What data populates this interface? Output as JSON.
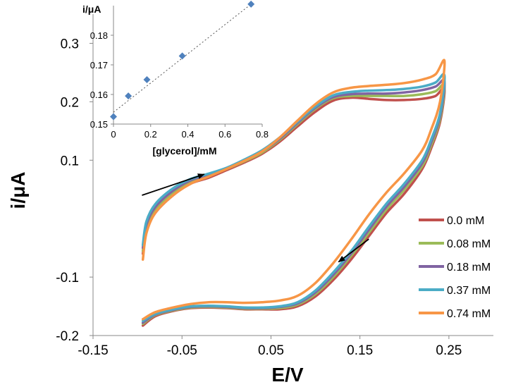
{
  "chart_data": [
    {
      "type": "line",
      "xlabel": "E/V",
      "ylabel": "i/μA",
      "xlim": [
        -0.15,
        0.3
      ],
      "ylim": [
        -0.2,
        0.35
      ],
      "x_ticks": [
        "-0.15",
        "-0.05",
        "0.05",
        "0.15",
        "0.25"
      ],
      "y_ticks": [
        "-0.2",
        "-0.1",
        "0.1",
        "0.2",
        "0.3"
      ],
      "grid": false,
      "legend_position": "bottom-right",
      "annotations": [
        {
          "type": "arrow",
          "direction": "up-right",
          "from": [
            -0.095,
            0.04
          ],
          "to": [
            -0.025,
            0.076
          ]
        },
        {
          "type": "arrow",
          "direction": "down-left",
          "from": [
            0.16,
            -0.035
          ],
          "to": [
            0.126,
            -0.074
          ]
        }
      ],
      "series": [
        {
          "name": "0.0 mM",
          "color": "#c0504d",
          "forward": [
            [
              -0.094,
              -0.06
            ],
            [
              -0.09,
              -0.02
            ],
            [
              -0.08,
              0.01
            ],
            [
              -0.06,
              0.04
            ],
            [
              -0.04,
              0.06
            ],
            [
              -0.02,
              0.07
            ],
            [
              0.0,
              0.083
            ],
            [
              0.02,
              0.096
            ],
            [
              0.04,
              0.111
            ],
            [
              0.06,
              0.132
            ],
            [
              0.08,
              0.158
            ],
            [
              0.1,
              0.183
            ],
            [
              0.12,
              0.202
            ],
            [
              0.14,
              0.207
            ],
            [
              0.16,
              0.205
            ],
            [
              0.18,
              0.203
            ],
            [
              0.2,
              0.203
            ],
            [
              0.22,
              0.205
            ],
            [
              0.235,
              0.21
            ],
            [
              0.245,
              0.222
            ]
          ],
          "reverse": [
            [
              0.245,
              0.222
            ],
            [
              0.24,
              0.165
            ],
            [
              0.23,
              0.12
            ],
            [
              0.22,
              0.085
            ],
            [
              0.2,
              0.043
            ],
            [
              0.18,
              0.01
            ],
            [
              0.16,
              -0.03
            ],
            [
              0.14,
              -0.07
            ],
            [
              0.12,
              -0.105
            ],
            [
              0.1,
              -0.133
            ],
            [
              0.08,
              -0.15
            ],
            [
              0.06,
              -0.155
            ],
            [
              0.04,
              -0.155
            ],
            [
              0.02,
              -0.155
            ],
            [
              0.0,
              -0.153
            ],
            [
              -0.02,
              -0.152
            ],
            [
              -0.04,
              -0.153
            ],
            [
              -0.06,
              -0.158
            ],
            [
              -0.08,
              -0.167
            ],
            [
              -0.094,
              -0.183
            ]
          ]
        },
        {
          "name": "0.08 mM",
          "color": "#9bbb59",
          "forward": [
            [
              -0.094,
              -0.055
            ],
            [
              -0.09,
              -0.015
            ],
            [
              -0.08,
              0.015
            ],
            [
              -0.06,
              0.044
            ],
            [
              -0.04,
              0.063
            ],
            [
              -0.02,
              0.073
            ],
            [
              0.0,
              0.085
            ],
            [
              0.02,
              0.098
            ],
            [
              0.04,
              0.113
            ],
            [
              0.06,
              0.135
            ],
            [
              0.08,
              0.162
            ],
            [
              0.1,
              0.188
            ],
            [
              0.12,
              0.206
            ],
            [
              0.14,
              0.21
            ],
            [
              0.16,
              0.21
            ],
            [
              0.18,
              0.21
            ],
            [
              0.2,
              0.21
            ],
            [
              0.22,
              0.213
            ],
            [
              0.235,
              0.218
            ],
            [
              0.245,
              0.228
            ]
          ],
          "reverse": [
            [
              0.245,
              0.228
            ],
            [
              0.24,
              0.17
            ],
            [
              0.23,
              0.125
            ],
            [
              0.22,
              0.09
            ],
            [
              0.2,
              0.05
            ],
            [
              0.18,
              0.016
            ],
            [
              0.16,
              -0.024
            ],
            [
              0.14,
              -0.064
            ],
            [
              0.12,
              -0.1
            ],
            [
              0.1,
              -0.129
            ],
            [
              0.08,
              -0.147
            ],
            [
              0.06,
              -0.153
            ],
            [
              0.04,
              -0.154
            ],
            [
              0.02,
              -0.154
            ],
            [
              0.0,
              -0.152
            ],
            [
              -0.02,
              -0.151
            ],
            [
              -0.04,
              -0.152
            ],
            [
              -0.06,
              -0.157
            ],
            [
              -0.08,
              -0.165
            ],
            [
              -0.094,
              -0.18
            ]
          ]
        },
        {
          "name": "0.18 mM",
          "color": "#8064a2",
          "forward": [
            [
              -0.094,
              -0.05
            ],
            [
              -0.09,
              -0.01
            ],
            [
              -0.08,
              0.02
            ],
            [
              -0.06,
              0.048
            ],
            [
              -0.04,
              0.066
            ],
            [
              -0.02,
              0.075
            ],
            [
              0.0,
              0.086
            ],
            [
              0.02,
              0.1
            ],
            [
              0.04,
              0.115
            ],
            [
              0.06,
              0.137
            ],
            [
              0.08,
              0.164
            ],
            [
              0.1,
              0.19
            ],
            [
              0.12,
              0.208
            ],
            [
              0.14,
              0.213
            ],
            [
              0.16,
              0.214
            ],
            [
              0.18,
              0.214
            ],
            [
              0.2,
              0.216
            ],
            [
              0.22,
              0.22
            ],
            [
              0.235,
              0.226
            ],
            [
              0.245,
              0.235
            ]
          ],
          "reverse": [
            [
              0.245,
              0.235
            ],
            [
              0.24,
              0.175
            ],
            [
              0.23,
              0.13
            ],
            [
              0.22,
              0.095
            ],
            [
              0.2,
              0.055
            ],
            [
              0.18,
              0.021
            ],
            [
              0.16,
              -0.019
            ],
            [
              0.14,
              -0.06
            ],
            [
              0.12,
              -0.096
            ],
            [
              0.1,
              -0.126
            ],
            [
              0.08,
              -0.145
            ],
            [
              0.06,
              -0.151
            ],
            [
              0.04,
              -0.153
            ],
            [
              0.02,
              -0.153
            ],
            [
              0.0,
              -0.151
            ],
            [
              -0.02,
              -0.15
            ],
            [
              -0.04,
              -0.151
            ],
            [
              -0.06,
              -0.156
            ],
            [
              -0.08,
              -0.164
            ],
            [
              -0.094,
              -0.178
            ]
          ]
        },
        {
          "name": "0.37 mM",
          "color": "#4bacc6",
          "forward": [
            [
              -0.094,
              -0.045
            ],
            [
              -0.09,
              -0.005
            ],
            [
              -0.08,
              0.025
            ],
            [
              -0.06,
              0.052
            ],
            [
              -0.04,
              0.068
            ],
            [
              -0.02,
              0.077
            ],
            [
              0.0,
              0.087
            ],
            [
              0.02,
              0.101
            ],
            [
              0.04,
              0.117
            ],
            [
              0.06,
              0.139
            ],
            [
              0.08,
              0.166
            ],
            [
              0.1,
              0.192
            ],
            [
              0.12,
              0.211
            ],
            [
              0.14,
              0.217
            ],
            [
              0.16,
              0.219
            ],
            [
              0.18,
              0.22
            ],
            [
              0.2,
              0.222
            ],
            [
              0.22,
              0.226
            ],
            [
              0.235,
              0.233
            ],
            [
              0.245,
              0.245
            ]
          ],
          "reverse": [
            [
              0.245,
              0.245
            ],
            [
              0.24,
              0.18
            ],
            [
              0.23,
              0.135
            ],
            [
              0.22,
              0.1
            ],
            [
              0.2,
              0.06
            ],
            [
              0.18,
              0.026
            ],
            [
              0.16,
              -0.014
            ],
            [
              0.14,
              -0.056
            ],
            [
              0.12,
              -0.092
            ],
            [
              0.1,
              -0.123
            ],
            [
              0.08,
              -0.143
            ],
            [
              0.06,
              -0.15
            ],
            [
              0.04,
              -0.152
            ],
            [
              0.02,
              -0.152
            ],
            [
              0.0,
              -0.15
            ],
            [
              -0.02,
              -0.149
            ],
            [
              -0.04,
              -0.15
            ],
            [
              -0.06,
              -0.155
            ],
            [
              -0.08,
              -0.163
            ],
            [
              -0.094,
              -0.175
            ]
          ]
        },
        {
          "name": "0.74 mM",
          "color": "#f79646",
          "forward": [
            [
              -0.094,
              -0.07
            ],
            [
              -0.09,
              -0.025
            ],
            [
              -0.08,
              0.01
            ],
            [
              -0.06,
              0.04
            ],
            [
              -0.04,
              0.06
            ],
            [
              -0.02,
              0.072
            ],
            [
              0.0,
              0.085
            ],
            [
              0.02,
              0.099
            ],
            [
              0.04,
              0.115
            ],
            [
              0.06,
              0.139
            ],
            [
              0.08,
              0.168
            ],
            [
              0.1,
              0.196
            ],
            [
              0.12,
              0.216
            ],
            [
              0.14,
              0.224
            ],
            [
              0.16,
              0.227
            ],
            [
              0.18,
              0.229
            ],
            [
              0.2,
              0.232
            ],
            [
              0.22,
              0.238
            ],
            [
              0.235,
              0.247
            ],
            [
              0.245,
              0.27
            ]
          ],
          "reverse": [
            [
              0.245,
              0.27
            ],
            [
              0.24,
              0.2
            ],
            [
              0.23,
              0.152
            ],
            [
              0.22,
              0.117
            ],
            [
              0.2,
              0.078
            ],
            [
              0.18,
              0.045
            ],
            [
              0.16,
              0.007
            ],
            [
              0.14,
              -0.036
            ],
            [
              0.12,
              -0.076
            ],
            [
              0.1,
              -0.11
            ],
            [
              0.08,
              -0.132
            ],
            [
              0.06,
              -0.14
            ],
            [
              0.04,
              -0.143
            ],
            [
              0.02,
              -0.144
            ],
            [
              0.0,
              -0.143
            ],
            [
              -0.02,
              -0.143
            ],
            [
              -0.04,
              -0.146
            ],
            [
              -0.06,
              -0.152
            ],
            [
              -0.08,
              -0.16
            ],
            [
              -0.094,
              -0.172
            ]
          ]
        }
      ]
    },
    {
      "type": "scatter",
      "xlabel": "[glycerol]/mM",
      "ylabel": "i/μA",
      "xlim": [
        0,
        0.8
      ],
      "ylim": [
        0.15,
        0.19
      ],
      "x_ticks": [
        "0",
        "0.2",
        "0.4",
        "0.6",
        "0.8"
      ],
      "y_ticks": [
        "0.15",
        "0.16",
        "0.17",
        "0.18"
      ],
      "grid": false,
      "trendline": {
        "style": "dotted",
        "from": [
          0,
          0.154
        ],
        "to": [
          0.74,
          0.1905
        ]
      },
      "points": {
        "marker": "diamond",
        "color": "#4f81bd",
        "x": [
          0,
          0.08,
          0.18,
          0.37,
          0.74
        ],
        "y": [
          0.1525,
          0.1595,
          0.165,
          0.173,
          0.1905
        ]
      }
    }
  ]
}
